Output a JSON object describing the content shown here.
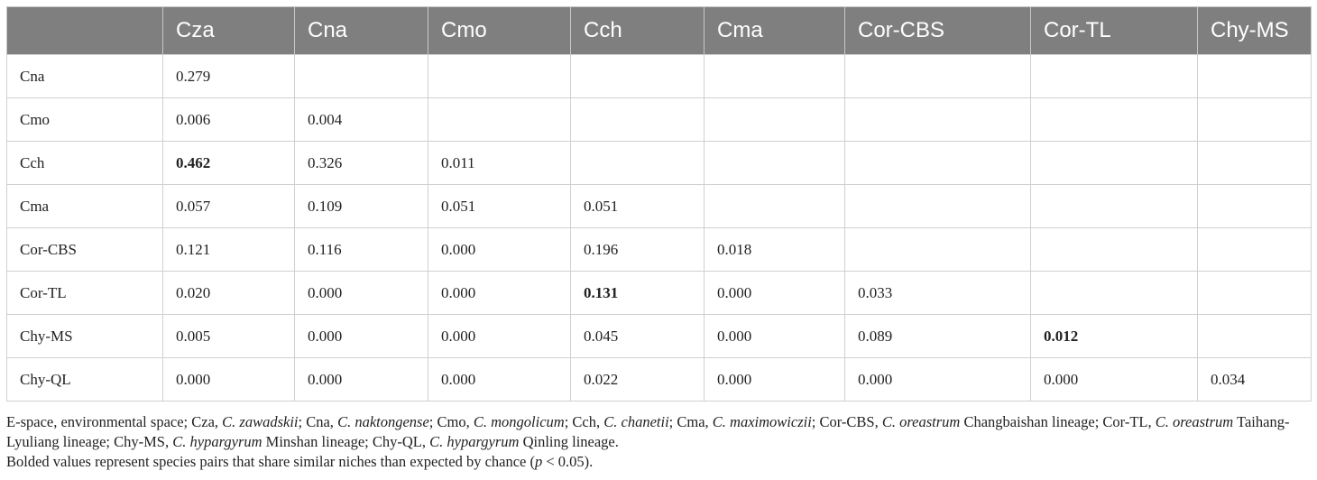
{
  "table": {
    "columns": [
      "Cza",
      "Cna",
      "Cmo",
      "Cch",
      "Cma",
      "Cor-CBS",
      "Cor-TL",
      "Chy-MS"
    ],
    "rows": [
      {
        "label": "Cna",
        "cells": [
          {
            "text": "0.279"
          }
        ]
      },
      {
        "label": "Cmo",
        "cells": [
          {
            "text": "0.006"
          },
          {
            "text": "0.004"
          }
        ]
      },
      {
        "label": "Cch",
        "cells": [
          {
            "text": "0.462",
            "bold": true
          },
          {
            "text": "0.326"
          },
          {
            "text": "0.011"
          }
        ]
      },
      {
        "label": "Cma",
        "cells": [
          {
            "text": "0.057"
          },
          {
            "text": "0.109"
          },
          {
            "text": "0.051"
          },
          {
            "text": "0.051"
          }
        ]
      },
      {
        "label": "Cor-CBS",
        "cells": [
          {
            "text": "0.121"
          },
          {
            "text": "0.116"
          },
          {
            "text": "0.000"
          },
          {
            "text": "0.196"
          },
          {
            "text": "0.018"
          }
        ]
      },
      {
        "label": "Cor-TL",
        "cells": [
          {
            "text": "0.020"
          },
          {
            "text": "0.000"
          },
          {
            "text": "0.000"
          },
          {
            "text": "0.131",
            "bold": true
          },
          {
            "text": "0.000"
          },
          {
            "text": "0.033"
          }
        ]
      },
      {
        "label": "Chy-MS",
        "cells": [
          {
            "text": "0.005"
          },
          {
            "text": "0.000"
          },
          {
            "text": "0.000"
          },
          {
            "text": "0.045"
          },
          {
            "text": "0.000"
          },
          {
            "text": "0.089"
          },
          {
            "text": "0.012",
            "bold": true
          }
        ]
      },
      {
        "label": "Chy-QL",
        "cells": [
          {
            "text": "0.000"
          },
          {
            "text": "0.000"
          },
          {
            "text": "0.000"
          },
          {
            "text": "0.022"
          },
          {
            "text": "0.000"
          },
          {
            "text": "0.000"
          },
          {
            "text": "0.000"
          },
          {
            "text": "0.034"
          }
        ]
      }
    ]
  },
  "footnotes": [
    {
      "segments": [
        {
          "text": "E-space, environmental space; Cza, "
        },
        {
          "text": "C. zawadskii",
          "italic": true
        },
        {
          "text": "; Cna, "
        },
        {
          "text": "C. naktongense",
          "italic": true
        },
        {
          "text": "; Cmo, "
        },
        {
          "text": "C. mongolicum",
          "italic": true
        },
        {
          "text": "; Cch, "
        },
        {
          "text": "C. chanetii",
          "italic": true
        },
        {
          "text": "; Cma, "
        },
        {
          "text": "C. maximowiczii",
          "italic": true
        },
        {
          "text": "; Cor-CBS, "
        },
        {
          "text": "C. oreastrum",
          "italic": true
        },
        {
          "text": " Changbaishan lineage; Cor-TL, "
        },
        {
          "text": "C. oreastrum",
          "italic": true
        },
        {
          "text": " Taihang-Lyuliang lineage; Chy-MS, "
        },
        {
          "text": "C. hypargyrum",
          "italic": true
        },
        {
          "text": " Minshan lineage; Chy-QL, "
        },
        {
          "text": "C. hypargyrum",
          "italic": true
        },
        {
          "text": " Qinling lineage."
        }
      ]
    },
    {
      "segments": [
        {
          "text": "Bolded values represent species pairs that share similar niches than expected by chance ("
        },
        {
          "text": "p",
          "italic": true
        },
        {
          "text": " < 0.05)."
        }
      ]
    }
  ]
}
